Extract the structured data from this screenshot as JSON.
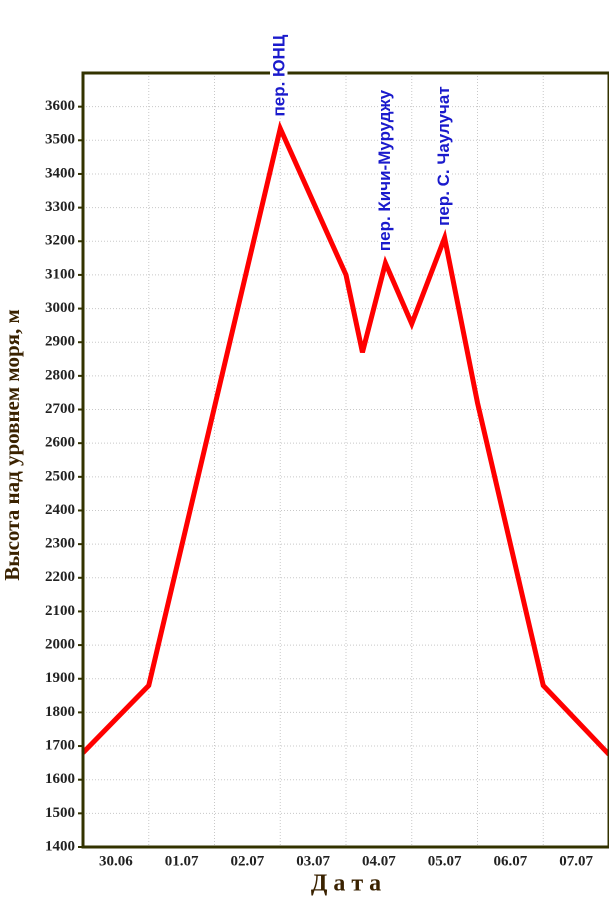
{
  "chart_data": {
    "type": "line",
    "y_label": "Высота над уровнем моря, м",
    "x_label": "Д а т а",
    "x": [
      0,
      1,
      3,
      4,
      4.25,
      4.6,
      5,
      5.5,
      6,
      7,
      8
    ],
    "series": [
      {
        "name": "Высота",
        "color": "#ff0000",
        "values": [
          1680,
          1880,
          3535,
          3100,
          2870,
          3135,
          2955,
          3210,
          2720,
          1880,
          1675
        ]
      }
    ],
    "xlim": [
      0,
      8
    ],
    "xticks": [
      {
        "value": 0.5,
        "label": "30.06"
      },
      {
        "value": 1.5,
        "label": "01.07"
      },
      {
        "value": 2.5,
        "label": "02.07"
      },
      {
        "value": 3.5,
        "label": "03.07"
      },
      {
        "value": 4.5,
        "label": "04.07"
      },
      {
        "value": 5.5,
        "label": "05.07"
      },
      {
        "value": 6.5,
        "label": "06.07"
      },
      {
        "value": 7.5,
        "label": "07.07"
      }
    ],
    "ylim": [
      1400,
      3700
    ],
    "yticks": [
      1400,
      1500,
      1600,
      1700,
      1800,
      1900,
      2000,
      2100,
      2200,
      2300,
      2400,
      2500,
      2600,
      2700,
      2800,
      2900,
      3000,
      3100,
      3200,
      3300,
      3400,
      3500,
      3600
    ],
    "grid": true,
    "annotations": [
      {
        "text": "пер. ЮНЦ",
        "x": 3
      },
      {
        "text": "пер. Кичи-Муруджу",
        "x": 4.6
      },
      {
        "text": "пер. С. Чаулучат",
        "x": 5.5
      }
    ]
  }
}
